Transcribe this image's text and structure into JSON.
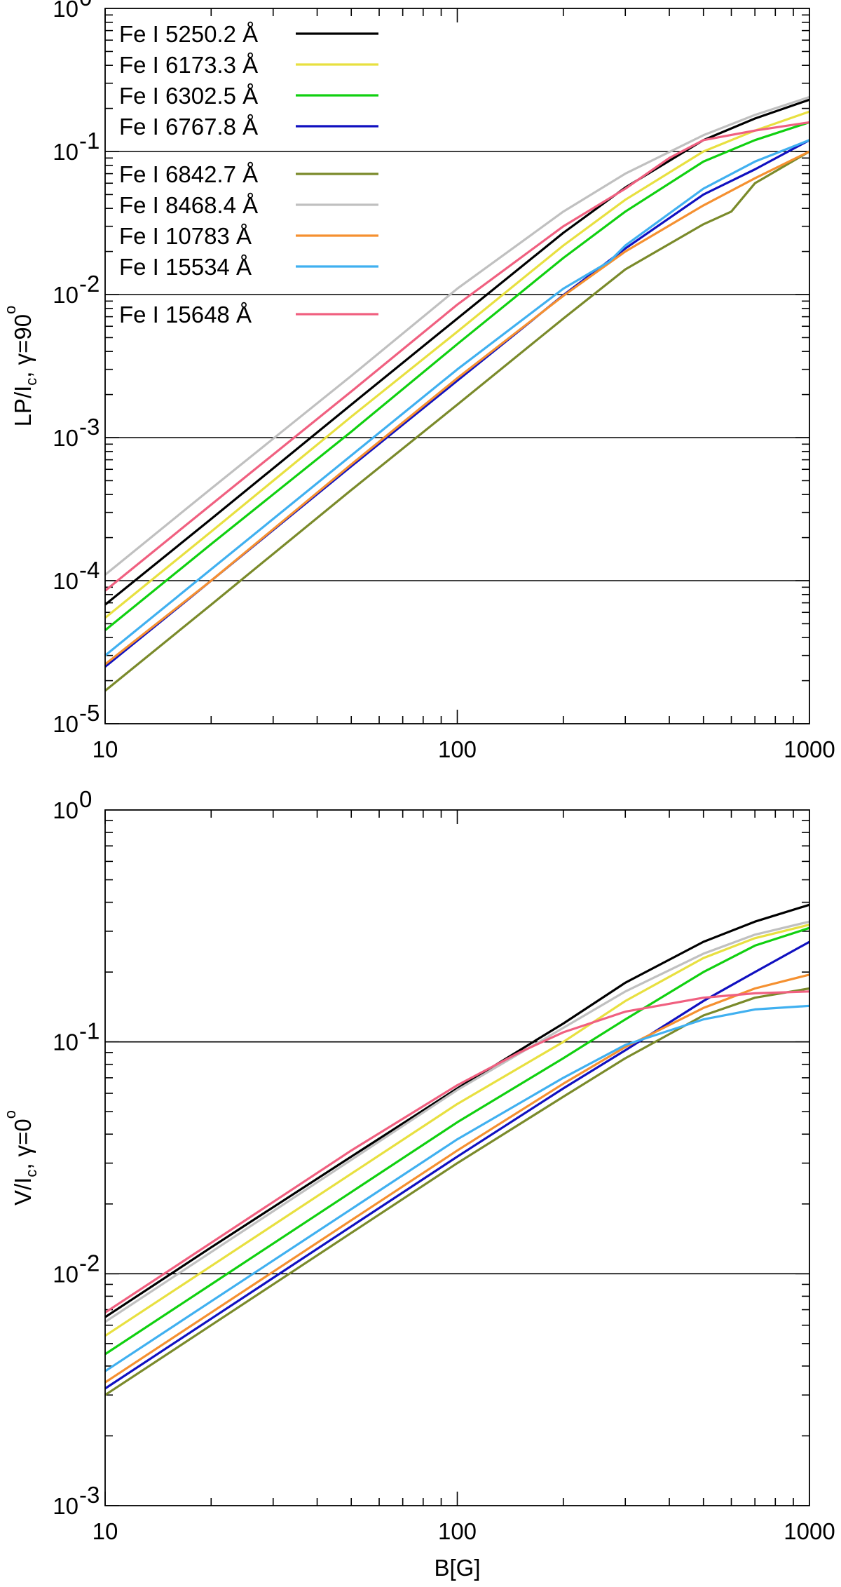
{
  "chart_data": [
    {
      "type": "line",
      "xscale": "log",
      "yscale": "log",
      "xlim": [
        10,
        1000
      ],
      "ylim": [
        1e-05,
        1
      ],
      "xlabel": "",
      "ylabel": {
        "main": "LP/I",
        "sub": "c",
        "rest": ", γ=90",
        "sup": "o"
      },
      "x_ticks": [
        "10",
        "100",
        "1000"
      ],
      "y_ticks": [
        {
          "base": "10",
          "exp": "-5",
          "value": 1e-05
        },
        {
          "base": "10",
          "exp": "-4",
          "value": 0.0001
        },
        {
          "base": "10",
          "exp": "-3",
          "value": 0.001
        },
        {
          "base": "10",
          "exp": "-2",
          "value": 0.01
        },
        {
          "base": "10",
          "exp": "-1",
          "value": 0.1
        },
        {
          "base": "10",
          "exp": "0",
          "value": 1
        }
      ],
      "hlines": [
        0.0001,
        0.001,
        0.01,
        0.1
      ],
      "legend": {
        "placement": "top-left"
      },
      "series": [
        {
          "name": "Fe I 5250.2 Å",
          "color": "#000000",
          "x": [
            10,
            20,
            50,
            100,
            200,
            300,
            500,
            700,
            1000
          ],
          "y": [
            6.8e-05,
            0.00027,
            0.0017,
            0.0068,
            0.027,
            0.056,
            0.12,
            0.17,
            0.23
          ]
        },
        {
          "name": "Fe I 6173.3 Å",
          "color": "#e8e040",
          "x": [
            10,
            20,
            50,
            100,
            200,
            300,
            500,
            700,
            1000
          ],
          "y": [
            5.5e-05,
            0.00022,
            0.0014,
            0.0055,
            0.022,
            0.046,
            0.1,
            0.14,
            0.19
          ]
        },
        {
          "name": "Fe I 6302.5 Å",
          "color": "#10d010",
          "x": [
            10,
            20,
            50,
            100,
            200,
            300,
            500,
            700,
            1000
          ],
          "y": [
            4.5e-05,
            0.00018,
            0.0011,
            0.0045,
            0.018,
            0.038,
            0.085,
            0.12,
            0.16
          ]
        },
        {
          "name": "Fe I 6767.8 Å",
          "color": "#1010c0",
          "x": [
            10,
            20,
            50,
            100,
            200,
            300,
            500,
            700,
            1000
          ],
          "y": [
            2.5e-05,
            0.0001,
            0.00063,
            0.0025,
            0.0099,
            0.021,
            0.05,
            0.075,
            0.12
          ]
        },
        {
          "name": "Fe I 6842.7 Å",
          "color": "#7a8a2a",
          "x": [
            10,
            20,
            50,
            100,
            200,
            300,
            500,
            600,
            700,
            1000
          ],
          "y": [
            1.7e-05,
            6.8e-05,
            0.00043,
            0.0017,
            0.0068,
            0.015,
            0.031,
            0.038,
            0.06,
            0.1
          ]
        },
        {
          "name": "Fe I 8468.4 Å",
          "color": "#c0c0c0",
          "x": [
            10,
            20,
            50,
            100,
            200,
            300,
            500,
            700,
            1000
          ],
          "y": [
            0.00011,
            0.00044,
            0.0027,
            0.011,
            0.038,
            0.07,
            0.13,
            0.18,
            0.24
          ]
        },
        {
          "name": "Fe I 10783  Å",
          "color": "#f59030",
          "x": [
            10,
            20,
            50,
            100,
            200,
            300,
            500,
            700,
            1000
          ],
          "y": [
            2.6e-05,
            0.0001,
            0.00065,
            0.0026,
            0.0098,
            0.02,
            0.042,
            0.065,
            0.1
          ]
        },
        {
          "name": "Fe I 15534  Å",
          "color": "#40b0f0",
          "x": [
            10,
            20,
            50,
            100,
            200,
            270,
            300,
            500,
            700,
            1000
          ],
          "y": [
            3e-05,
            0.00012,
            0.00075,
            0.003,
            0.011,
            0.017,
            0.022,
            0.055,
            0.085,
            0.12
          ]
        },
        {
          "name": "Fe I 15648  Å",
          "color": "#f06080",
          "x": [
            10,
            20,
            50,
            100,
            200,
            300,
            400,
            500,
            700,
            1000
          ],
          "y": [
            8.5e-05,
            0.00034,
            0.0021,
            0.0085,
            0.03,
            0.055,
            0.09,
            0.12,
            0.14,
            0.16
          ]
        }
      ]
    },
    {
      "type": "line",
      "xscale": "log",
      "yscale": "log",
      "xlim": [
        10,
        1000
      ],
      "ylim": [
        0.001,
        1
      ],
      "xlabel": "B[G]",
      "ylabel": {
        "main": "V/I",
        "sub": "c",
        "rest": ", γ=0",
        "sup": "o"
      },
      "x_ticks": [
        "10",
        "100",
        "1000"
      ],
      "y_ticks": [
        {
          "base": "10",
          "exp": "-3",
          "value": 0.001
        },
        {
          "base": "10",
          "exp": "-2",
          "value": 0.01
        },
        {
          "base": "10",
          "exp": "-1",
          "value": 0.1
        },
        {
          "base": "10",
          "exp": "0",
          "value": 1
        }
      ],
      "hlines": [
        0.01,
        0.1
      ],
      "series": [
        {
          "name": "Fe I 5250.2 Å",
          "color": "#000000",
          "x": [
            10,
            20,
            50,
            100,
            200,
            300,
            500,
            700,
            1000
          ],
          "y": [
            0.0065,
            0.013,
            0.032,
            0.063,
            0.12,
            0.18,
            0.27,
            0.33,
            0.39
          ]
        },
        {
          "name": "Fe I 6173.3 Å",
          "color": "#e8e040",
          "x": [
            10,
            20,
            50,
            100,
            200,
            300,
            500,
            700,
            1000
          ],
          "y": [
            0.0054,
            0.0108,
            0.027,
            0.054,
            0.1,
            0.15,
            0.23,
            0.28,
            0.32
          ]
        },
        {
          "name": "Fe I 6302.5 Å",
          "color": "#10d010",
          "x": [
            10,
            20,
            50,
            100,
            200,
            300,
            500,
            700,
            1000
          ],
          "y": [
            0.0045,
            0.009,
            0.0225,
            0.045,
            0.085,
            0.125,
            0.2,
            0.26,
            0.31
          ]
        },
        {
          "name": "Fe I 6767.8 Å",
          "color": "#1010c0",
          "x": [
            10,
            20,
            50,
            100,
            200,
            300,
            500,
            700,
            1000
          ],
          "y": [
            0.0032,
            0.0064,
            0.016,
            0.032,
            0.063,
            0.092,
            0.15,
            0.2,
            0.27
          ]
        },
        {
          "name": "Fe I 6842.7 Å",
          "color": "#7a8a2a",
          "x": [
            10,
            20,
            50,
            100,
            200,
            300,
            500,
            700,
            1000
          ],
          "y": [
            0.003,
            0.006,
            0.015,
            0.03,
            0.058,
            0.085,
            0.13,
            0.155,
            0.17
          ]
        },
        {
          "name": "Fe I 8468.4 Å",
          "color": "#c0c0c0",
          "x": [
            10,
            20,
            50,
            100,
            200,
            300,
            500,
            700,
            1000
          ],
          "y": [
            0.0062,
            0.0124,
            0.031,
            0.062,
            0.115,
            0.165,
            0.24,
            0.29,
            0.33
          ]
        },
        {
          "name": "Fe I 10783  Å",
          "color": "#f59030",
          "x": [
            10,
            20,
            50,
            100,
            200,
            300,
            500,
            700,
            1000
          ],
          "y": [
            0.0034,
            0.0068,
            0.017,
            0.034,
            0.066,
            0.095,
            0.14,
            0.17,
            0.195
          ]
        },
        {
          "name": "Fe I 15534  Å",
          "color": "#40b0f0",
          "x": [
            10,
            20,
            50,
            100,
            200,
            300,
            500,
            700,
            1000
          ],
          "y": [
            0.0038,
            0.0076,
            0.019,
            0.038,
            0.07,
            0.097,
            0.125,
            0.138,
            0.143
          ]
        },
        {
          "name": "Fe I 15648  Å",
          "color": "#f06080",
          "x": [
            10,
            20,
            50,
            100,
            150,
            200,
            300,
            500,
            700,
            1000
          ],
          "y": [
            0.0068,
            0.0136,
            0.034,
            0.065,
            0.09,
            0.11,
            0.135,
            0.155,
            0.162,
            0.165
          ]
        }
      ]
    }
  ]
}
